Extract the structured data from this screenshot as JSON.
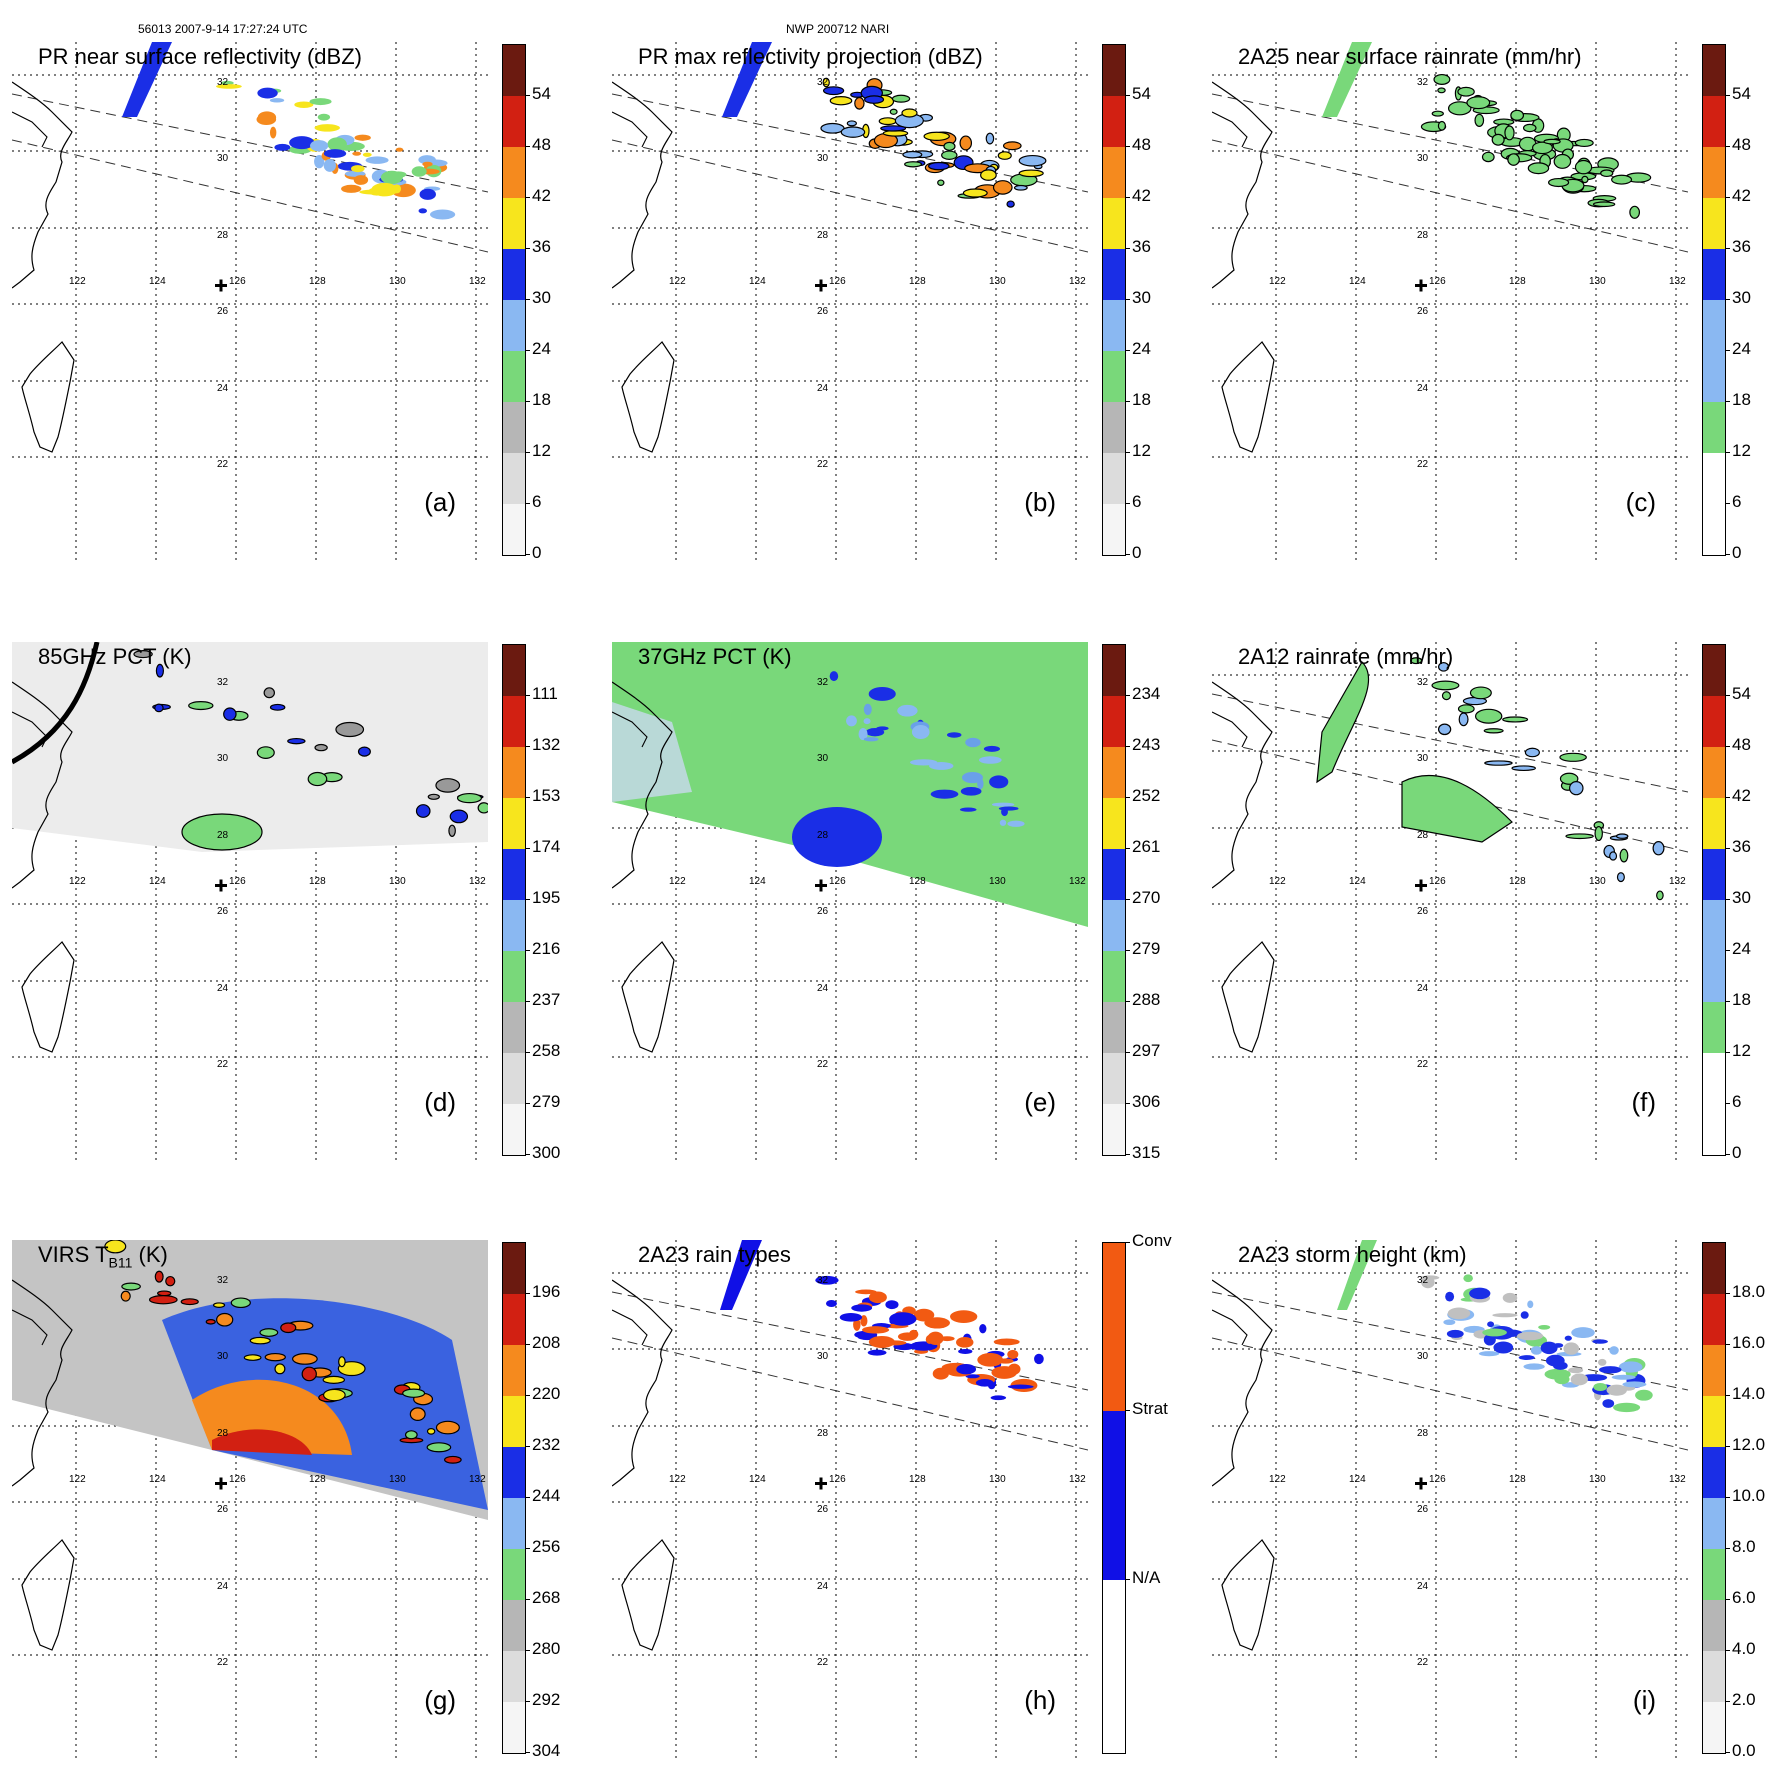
{
  "header": {
    "orbit_line": "56013 2007-9-14 17:27:24 UTC",
    "source_line": "NWP 200712 NARI"
  },
  "grid": {
    "longitudes": [
      "122",
      "124",
      "126",
      "128",
      "130",
      "132"
    ],
    "latitudes": [
      "32",
      "30",
      "28",
      "26",
      "24",
      "22"
    ]
  },
  "colors": {
    "dark_red": "#6b1a10",
    "red": "#d22012",
    "orange": "#f58a1e",
    "yellow": "#f7e51d",
    "blue": "#1a2ee6",
    "light_blue": "#8ab8f2",
    "green": "#79d87a",
    "gray": "#b6b6b6",
    "rain_conv": "#f25a12",
    "rain_strat": "#1010e6"
  },
  "panels": [
    {
      "id": "a",
      "label": "(a)",
      "title": "PR near surface reflectivity (dBZ)",
      "colorbar_ticks": [
        "54",
        "48",
        "42",
        "36",
        "30",
        "24",
        "18",
        "12",
        "6",
        "0"
      ],
      "palette": "reflectivity"
    },
    {
      "id": "b",
      "label": "(b)",
      "title": "PR max reflectivity projection (dBZ)",
      "colorbar_ticks": [
        "54",
        "48",
        "42",
        "36",
        "30",
        "24",
        "18",
        "12",
        "6",
        "0"
      ],
      "palette": "reflectivity"
    },
    {
      "id": "c",
      "label": "(c)",
      "title": "2A25 near surface rainrate (mm/hr)",
      "colorbar_ticks": [
        "54",
        "48",
        "42",
        "36",
        "30",
        "24",
        "18",
        "12",
        "6",
        "0"
      ],
      "palette": "rainrate"
    },
    {
      "id": "d",
      "label": "(d)",
      "title": "85GHz PCT (K)",
      "colorbar_ticks": [
        "111",
        "132",
        "153",
        "174",
        "195",
        "216",
        "237",
        "258",
        "279",
        "300"
      ],
      "palette": "reflectivity"
    },
    {
      "id": "e",
      "label": "(e)",
      "title": "37GHz PCT (K)",
      "colorbar_ticks": [
        "234",
        "243",
        "252",
        "261",
        "270",
        "279",
        "288",
        "297",
        "306",
        "315"
      ],
      "palette": "reflectivity"
    },
    {
      "id": "f",
      "label": "(f)",
      "title": "2A12 rainrate (mm/hr)",
      "colorbar_ticks": [
        "54",
        "48",
        "42",
        "36",
        "30",
        "24",
        "18",
        "12",
        "6",
        "0"
      ],
      "palette": "rainrate"
    },
    {
      "id": "g",
      "label": "(g)",
      "title": "VIRS T",
      "title_sub": "B11",
      "title_tail": " (K)",
      "colorbar_ticks": [
        "196",
        "208",
        "220",
        "232",
        "244",
        "256",
        "268",
        "280",
        "292",
        "304"
      ],
      "palette": "reflectivity"
    },
    {
      "id": "h",
      "label": "(h)",
      "title": "2A23 rain types",
      "colorbar_ticks": [
        "Conv",
        "Strat",
        "N/A"
      ],
      "palette": "raintype"
    },
    {
      "id": "i",
      "label": "(i)",
      "title": "2A23 storm height (km)",
      "colorbar_ticks": [
        "18.0",
        "16.0",
        "14.0",
        "12.0",
        "10.0",
        "8.0",
        "6.0",
        "4.0",
        "2.0",
        "0.0"
      ],
      "palette": "reflectivity"
    }
  ]
}
